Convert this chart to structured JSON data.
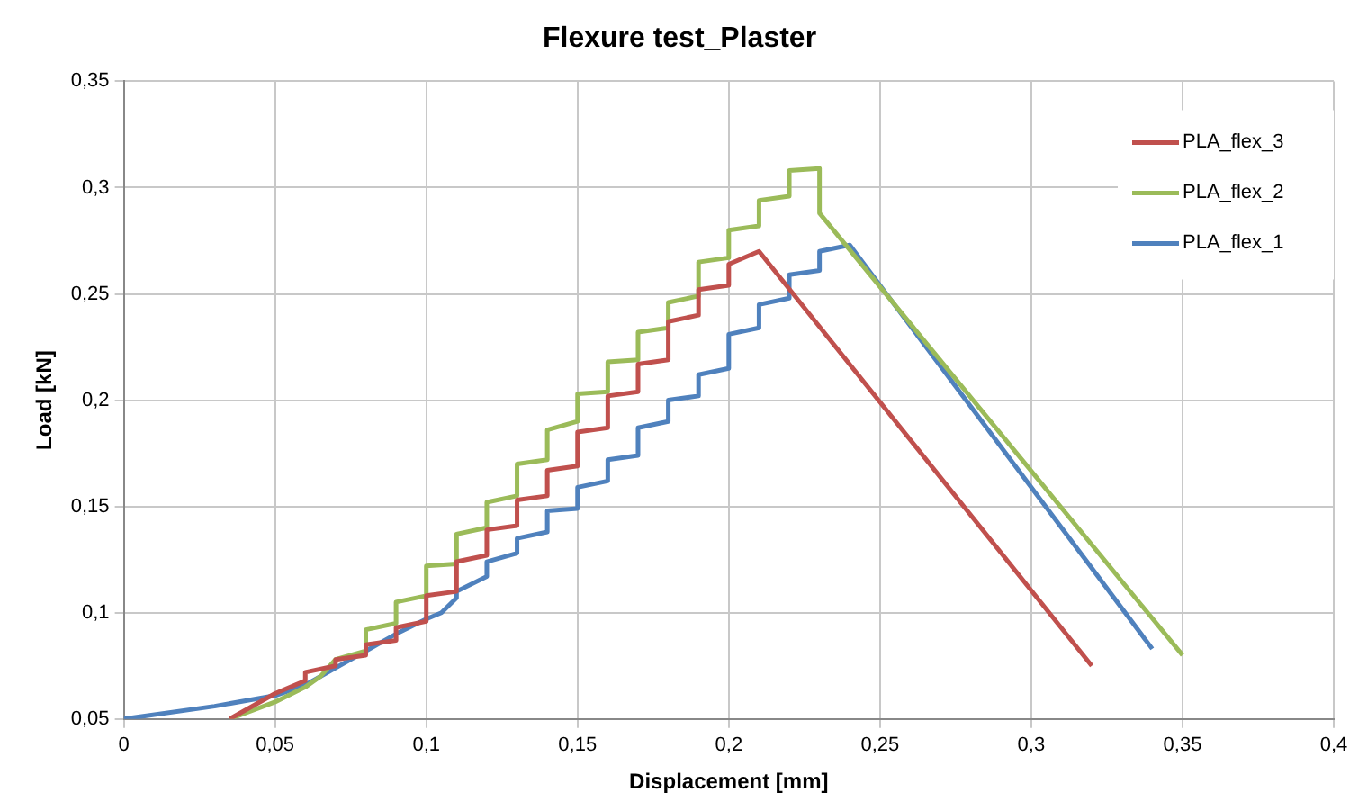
{
  "chart_data": {
    "type": "line",
    "title": "Flexure test_Plaster",
    "xlabel": "Displacement [mm]",
    "ylabel": "Load [kN]",
    "legend": "top right",
    "grid": true,
    "marker": "none",
    "line_style": "solid",
    "xlim": [
      0,
      0.4
    ],
    "xticks": [
      0,
      {
        "value": 0.05,
        "label": "0,05"
      },
      {
        "value": 0.1,
        "label": "0,1"
      },
      {
        "value": 0.15,
        "label": "0,15"
      },
      {
        "value": 0.2,
        "label": "0,2"
      },
      {
        "value": 0.25,
        "label": "0,25"
      },
      {
        "value": 0.3,
        "label": "0,3"
      },
      {
        "value": 0.35,
        "label": "0,35"
      },
      {
        "value": 0.4,
        "label": "0,4"
      }
    ],
    "ylim": [
      0.05,
      0.35
    ],
    "yticks": [
      {
        "value": 0.05,
        "label": "0,05"
      },
      {
        "value": 0.1,
        "label": "0,1"
      },
      {
        "value": 0.15,
        "label": "0,15"
      },
      {
        "value": 0.2,
        "label": "0,2"
      },
      {
        "value": 0.25,
        "label": "0,25"
      },
      {
        "value": 0.3,
        "label": "0,3"
      },
      {
        "value": 0.35,
        "label": "0,35"
      }
    ],
    "series": [
      {
        "name": "PLA_flex_3",
        "color": "#c0504d",
        "x": [
          0.035,
          0.05,
          0.06,
          0.06,
          0.07,
          0.07,
          0.08,
          0.08,
          0.09,
          0.09,
          0.1,
          0.1,
          0.11,
          0.11,
          0.12,
          0.12,
          0.13,
          0.13,
          0.14,
          0.14,
          0.15,
          0.15,
          0.16,
          0.16,
          0.17,
          0.17,
          0.18,
          0.18,
          0.19,
          0.19,
          0.2,
          0.2,
          0.21,
          0.32
        ],
        "values": [
          0.05,
          0.062,
          0.068,
          0.072,
          0.075,
          0.078,
          0.08,
          0.085,
          0.087,
          0.093,
          0.096,
          0.108,
          0.11,
          0.124,
          0.127,
          0.139,
          0.141,
          0.153,
          0.155,
          0.167,
          0.169,
          0.185,
          0.187,
          0.202,
          0.204,
          0.217,
          0.219,
          0.237,
          0.24,
          0.252,
          0.254,
          0.264,
          0.27,
          0.075
        ]
      },
      {
        "name": "PLA_flex_2",
        "color": "#9bbb59",
        "x": [
          0.035,
          0.05,
          0.06,
          0.065,
          0.07,
          0.08,
          0.08,
          0.09,
          0.09,
          0.1,
          0.1,
          0.11,
          0.11,
          0.12,
          0.12,
          0.13,
          0.13,
          0.14,
          0.14,
          0.15,
          0.15,
          0.16,
          0.16,
          0.17,
          0.17,
          0.18,
          0.18,
          0.19,
          0.19,
          0.2,
          0.2,
          0.21,
          0.21,
          0.22,
          0.22,
          0.23,
          0.23,
          0.35
        ],
        "values": [
          0.05,
          0.058,
          0.065,
          0.07,
          0.078,
          0.082,
          0.092,
          0.095,
          0.105,
          0.108,
          0.122,
          0.123,
          0.137,
          0.14,
          0.152,
          0.155,
          0.17,
          0.172,
          0.186,
          0.19,
          0.203,
          0.204,
          0.218,
          0.219,
          0.232,
          0.234,
          0.246,
          0.249,
          0.265,
          0.267,
          0.28,
          0.282,
          0.294,
          0.296,
          0.308,
          0.309,
          0.288,
          0.08
        ]
      },
      {
        "name": "PLA_flex_1",
        "color": "#4f81bd",
        "x": [
          0,
          0.03,
          0.05,
          0.06,
          0.07,
          0.08,
          0.09,
          0.1,
          0.105,
          0.11,
          0.11,
          0.12,
          0.12,
          0.13,
          0.13,
          0.14,
          0.14,
          0.15,
          0.15,
          0.16,
          0.16,
          0.17,
          0.17,
          0.18,
          0.18,
          0.19,
          0.19,
          0.2,
          0.2,
          0.21,
          0.21,
          0.22,
          0.22,
          0.23,
          0.23,
          0.24,
          0.34
        ],
        "values": [
          0.05,
          0.056,
          0.061,
          0.066,
          0.074,
          0.082,
          0.09,
          0.097,
          0.1,
          0.107,
          0.11,
          0.117,
          0.124,
          0.128,
          0.135,
          0.138,
          0.148,
          0.149,
          0.159,
          0.162,
          0.172,
          0.174,
          0.187,
          0.19,
          0.2,
          0.202,
          0.212,
          0.215,
          0.231,
          0.234,
          0.245,
          0.248,
          0.259,
          0.261,
          0.27,
          0.273,
          0.083
        ]
      }
    ]
  }
}
